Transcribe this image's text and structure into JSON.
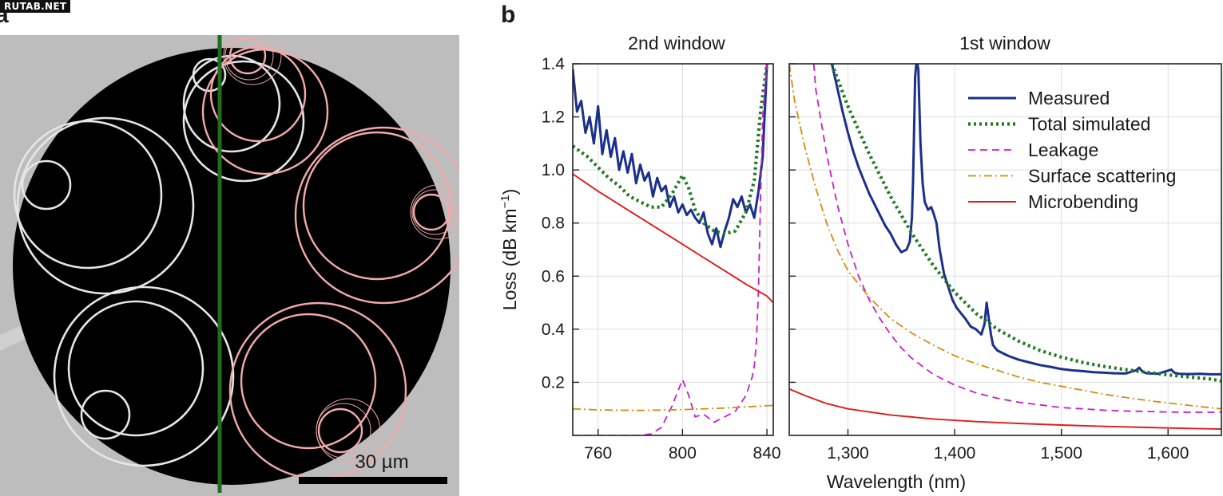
{
  "watermark": "RUTAB.NET",
  "panel_a": {
    "label": "a",
    "scalebar_label": "30 µm",
    "colors": {
      "background": "#bdbdbd",
      "core": "#000000",
      "left_rings": "#e6e6e6",
      "right_rings": "#f2aaaa",
      "divider": "#1e6e1e"
    }
  },
  "panel_b": {
    "label": "b"
  },
  "chart_data": {
    "type": "line",
    "ylabel": "Loss (dB km",
    "ylabel_sup": "−1",
    "ylabel_close": ")",
    "xlabel": "Wavelength (nm)",
    "ylim": [
      0,
      1.4
    ],
    "yticks": [
      0.2,
      0.4,
      0.6,
      0.8,
      1.0,
      1.2,
      1.4
    ],
    "ytick_labels": [
      "0.2",
      "0.4",
      "0.6",
      "0.8",
      "1.0",
      "1.2",
      "1.4"
    ],
    "grid": true,
    "legend_position": "top-right",
    "subplots": [
      {
        "title": "2nd window",
        "xlim": [
          748,
          843
        ],
        "xticks": [
          760,
          800,
          840
        ],
        "xtick_labels": [
          "760",
          "800",
          "840"
        ],
        "series": [
          {
            "key": "measured",
            "x": [
              748,
              750,
              752,
              754,
              756,
              758,
              760,
              762,
              764,
              766,
              768,
              770,
              772,
              774,
              776,
              778,
              780,
              782,
              784,
              786,
              788,
              790,
              792,
              794,
              796,
              798,
              800,
              802,
              804,
              806,
              808,
              810,
              812,
              814,
              816,
              818,
              820,
              822,
              824,
              826,
              828,
              830,
              832,
              834,
              836,
              838,
              840
            ],
            "y": [
              1.38,
              1.22,
              1.26,
              1.14,
              1.2,
              1.1,
              1.24,
              1.06,
              1.15,
              1.05,
              1.12,
              1.0,
              1.07,
              0.99,
              1.06,
              0.95,
              1.02,
              0.96,
              0.99,
              0.9,
              0.97,
              0.92,
              0.94,
              0.86,
              0.9,
              0.84,
              0.87,
              0.83,
              0.85,
              0.82,
              0.8,
              0.84,
              0.76,
              0.72,
              0.78,
              0.71,
              0.77,
              0.82,
              0.89,
              0.86,
              0.9,
              0.84,
              0.87,
              0.82,
              0.92,
              1.05,
              1.4
            ]
          },
          {
            "key": "total",
            "x": [
              748,
              755,
              760,
              765,
              770,
              775,
              780,
              785,
              790,
              795,
              800,
              803,
              806,
              810,
              815,
              820,
              825,
              830,
              834,
              837,
              840
            ],
            "y": [
              1.09,
              1.05,
              1.01,
              0.97,
              0.94,
              0.9,
              0.88,
              0.86,
              0.86,
              0.91,
              0.98,
              0.93,
              0.85,
              0.8,
              0.77,
              0.76,
              0.77,
              0.84,
              0.96,
              1.22,
              1.4
            ]
          },
          {
            "key": "leakage",
            "x": [
              748,
              760,
              770,
              780,
              785,
              790,
              795,
              800,
              803,
              806,
              810,
              815,
              820,
              825,
              830,
              833,
              834,
              835,
              836,
              837,
              838,
              840
            ],
            "y": [
              0,
              0,
              0,
              0,
              0.005,
              0.03,
              0.11,
              0.21,
              0.15,
              0.07,
              0.08,
              0.05,
              0.07,
              0.09,
              0.15,
              0.22,
              0.26,
              0.35,
              0.55,
              0.9,
              1.2,
              1.4
            ]
          },
          {
            "key": "surface",
            "x": [
              748,
              760,
              780,
              800,
              820,
              843
            ],
            "y": [
              0.1,
              0.096,
              0.094,
              0.097,
              0.103,
              0.113
            ]
          },
          {
            "key": "microbending",
            "x": [
              748,
              760,
              770,
              780,
              790,
              800,
              810,
              820,
              830,
              840,
              843
            ],
            "y": [
              0.985,
              0.92,
              0.87,
              0.82,
              0.77,
              0.72,
              0.67,
              0.62,
              0.57,
              0.525,
              0.5
            ]
          }
        ]
      },
      {
        "title": "1st window",
        "xlim": [
          1245,
          1650
        ],
        "xticks": [
          1300,
          1400,
          1500,
          1600
        ],
        "xtick_labels": [
          "1,300",
          "1,400",
          "1,500",
          "1,600"
        ],
        "series": [
          {
            "key": "measured",
            "x": [
              1285,
              1290,
              1295,
              1300,
              1305,
              1310,
              1315,
              1320,
              1325,
              1330,
              1335,
              1340,
              1345,
              1350,
              1355,
              1358,
              1360,
              1361,
              1362,
              1363,
              1364,
              1365,
              1366,
              1368,
              1370,
              1372,
              1375,
              1378,
              1380,
              1383,
              1386,
              1390,
              1394,
              1398,
              1402,
              1406,
              1410,
              1415,
              1420,
              1425,
              1428,
              1430,
              1432,
              1434,
              1436,
              1440,
              1450,
              1460,
              1470,
              1480,
              1490,
              1500,
              1510,
              1520,
              1530,
              1540,
              1550,
              1560,
              1570,
              1573,
              1576,
              1580,
              1590,
              1600,
              1603,
              1606,
              1610,
              1620,
              1630,
              1640,
              1650
            ],
            "y": [
              1.4,
              1.31,
              1.22,
              1.14,
              1.07,
              1.01,
              0.96,
              0.91,
              0.87,
              0.83,
              0.79,
              0.76,
              0.72,
              0.69,
              0.7,
              0.73,
              0.82,
              0.96,
              1.15,
              1.35,
              1.4,
              1.4,
              1.38,
              1.1,
              0.95,
              0.88,
              0.85,
              0.86,
              0.84,
              0.8,
              0.7,
              0.61,
              0.56,
              0.51,
              0.48,
              0.46,
              0.44,
              0.41,
              0.4,
              0.38,
              0.42,
              0.5,
              0.44,
              0.38,
              0.34,
              0.32,
              0.3,
              0.285,
              0.275,
              0.265,
              0.258,
              0.25,
              0.245,
              0.242,
              0.238,
              0.236,
              0.234,
              0.233,
              0.245,
              0.255,
              0.24,
              0.234,
              0.232,
              0.244,
              0.248,
              0.236,
              0.232,
              0.231,
              0.232,
              0.23,
              0.23
            ]
          },
          {
            "key": "total",
            "x": [
              1285,
              1300,
              1320,
              1340,
              1360,
              1380,
              1400,
              1420,
              1440,
              1460,
              1480,
              1500,
              1520,
              1540,
              1560,
              1580,
              1600,
              1620,
              1640,
              1650
            ],
            "y": [
              1.4,
              1.24,
              1.06,
              0.9,
              0.76,
              0.64,
              0.54,
              0.46,
              0.4,
              0.355,
              0.32,
              0.295,
              0.275,
              0.26,
              0.248,
              0.238,
              0.228,
              0.22,
              0.212,
              0.205
            ]
          },
          {
            "key": "leakage",
            "x": [
              1268,
              1270,
              1280,
              1290,
              1300,
              1310,
              1320,
              1330,
              1340,
              1350,
              1360,
              1370,
              1380,
              1390,
              1400,
              1420,
              1440,
              1460,
              1480,
              1500,
              1520,
              1540,
              1560,
              1580,
              1600,
              1620,
              1650
            ],
            "y": [
              1.4,
              1.3,
              1.06,
              0.87,
              0.72,
              0.6,
              0.51,
              0.44,
              0.38,
              0.33,
              0.29,
              0.26,
              0.23,
              0.21,
              0.19,
              0.16,
              0.14,
              0.125,
              0.115,
              0.105,
              0.1,
              0.095,
              0.092,
              0.09,
              0.088,
              0.087,
              0.087
            ]
          },
          {
            "key": "surface",
            "x": [
              1245,
              1250,
              1260,
              1270,
              1280,
              1290,
              1300,
              1320,
              1340,
              1360,
              1380,
              1400,
              1420,
              1440,
              1460,
              1480,
              1500,
              1520,
              1540,
              1560,
              1580,
              1600,
              1620,
              1650
            ],
            "y": [
              1.4,
              1.26,
              1.08,
              0.93,
              0.8,
              0.7,
              0.62,
              0.52,
              0.44,
              0.385,
              0.34,
              0.3,
              0.27,
              0.245,
              0.22,
              0.2,
              0.185,
              0.17,
              0.155,
              0.143,
              0.132,
              0.122,
              0.113,
              0.1
            ]
          },
          {
            "key": "microbending",
            "x": [
              1245,
              1260,
              1280,
              1300,
              1340,
              1380,
              1420,
              1460,
              1500,
              1540,
              1580,
              1620,
              1650
            ],
            "y": [
              0.175,
              0.15,
              0.12,
              0.1,
              0.077,
              0.062,
              0.052,
              0.045,
              0.039,
              0.034,
              0.03,
              0.026,
              0.024
            ]
          }
        ]
      }
    ],
    "series_styles": [
      {
        "key": "measured",
        "name": "Measured",
        "color": "#1b2f8c",
        "dash": "none"
      },
      {
        "key": "total",
        "name": "Total simulated",
        "color": "#1f7a1f",
        "dash": "dotted"
      },
      {
        "key": "leakage",
        "name": "Leakage",
        "color": "#c71ec7",
        "dash": "dashed"
      },
      {
        "key": "surface",
        "name": "Surface scattering",
        "color": "#d88a10",
        "dash": "dashdot"
      },
      {
        "key": "microbending",
        "name": "Microbending",
        "color": "#dd1c1c",
        "dash": "none"
      }
    ]
  }
}
